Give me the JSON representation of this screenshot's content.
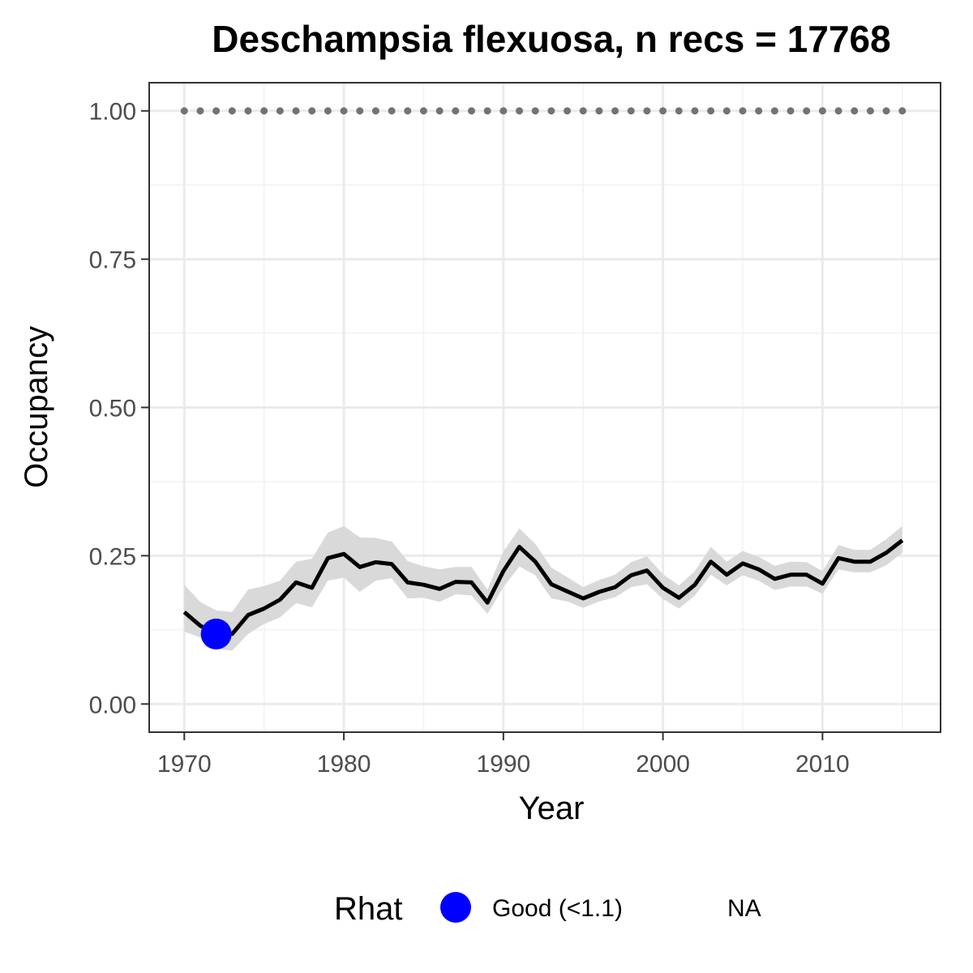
{
  "chart_data": {
    "type": "line",
    "title": "Deschampsia flexuosa, n recs = 17768",
    "xlabel": "Year",
    "ylabel": "Occupancy",
    "xlim": [
      1967.8,
      2017.4
    ],
    "ylim": [
      -0.0475,
      1.0475
    ],
    "x_ticks": [
      1970,
      1980,
      1990,
      2000,
      2010
    ],
    "x_tick_labels": [
      "1970",
      "1980",
      "1990",
      "2000",
      "2010"
    ],
    "y_ticks": [
      0,
      0.25,
      0.5,
      0.75,
      1
    ],
    "y_tick_labels": [
      "0.00",
      "0.25",
      "0.50",
      "0.75",
      "1.00"
    ],
    "grid": true,
    "legend": {
      "position": "bottom",
      "title": "Rhat",
      "entries": [
        {
          "label": "Good (<1.1)",
          "color": "#0000ff",
          "marker": "circle"
        },
        {
          "label": "NA",
          "color": "",
          "marker": "none"
        }
      ]
    },
    "colors": {
      "line": "#000000",
      "ribbon": "#d9d9d9",
      "reference": "#737373",
      "rhat_good": "#0000ff"
    },
    "series": [
      {
        "x": [
          1970,
          1971,
          1972,
          1973,
          1974,
          1975,
          1976,
          1977,
          1978,
          1979,
          1980,
          1981,
          1982,
          1983,
          1984,
          1985,
          1986,
          1987,
          1988,
          1989,
          1990,
          1991,
          1992,
          1993,
          1994,
          1995,
          1996,
          1997,
          1998,
          1999,
          2000,
          2001,
          2002,
          2003,
          2004,
          2005,
          2006,
          2007,
          2008,
          2009,
          2010,
          2011,
          2012,
          2013,
          2014,
          2015
        ],
        "values": [
          0.155,
          0.132,
          0.118,
          0.118,
          0.15,
          0.161,
          0.176,
          0.205,
          0.196,
          0.246,
          0.253,
          0.231,
          0.239,
          0.236,
          0.205,
          0.201,
          0.194,
          0.206,
          0.205,
          0.171,
          0.224,
          0.265,
          0.24,
          0.202,
          0.19,
          0.178,
          0.189,
          0.197,
          0.217,
          0.225,
          0.196,
          0.179,
          0.201,
          0.24,
          0.218,
          0.237,
          0.227,
          0.211,
          0.218,
          0.218,
          0.203,
          0.246,
          0.24,
          0.24,
          0.255,
          0.276
        ],
        "lower": [
          0.122,
          0.112,
          0.093,
          0.09,
          0.118,
          0.135,
          0.146,
          0.17,
          0.163,
          0.208,
          0.213,
          0.189,
          0.208,
          0.212,
          0.178,
          0.179,
          0.172,
          0.185,
          0.183,
          0.152,
          0.197,
          0.232,
          0.217,
          0.178,
          0.173,
          0.162,
          0.173,
          0.18,
          0.197,
          0.202,
          0.177,
          0.161,
          0.183,
          0.218,
          0.2,
          0.217,
          0.208,
          0.192,
          0.198,
          0.198,
          0.186,
          0.227,
          0.222,
          0.222,
          0.234,
          0.255
        ],
        "upper": [
          0.201,
          0.172,
          0.158,
          0.155,
          0.193,
          0.199,
          0.208,
          0.24,
          0.245,
          0.289,
          0.3,
          0.281,
          0.28,
          0.274,
          0.241,
          0.232,
          0.227,
          0.231,
          0.231,
          0.193,
          0.257,
          0.296,
          0.27,
          0.23,
          0.214,
          0.197,
          0.209,
          0.218,
          0.239,
          0.249,
          0.219,
          0.2,
          0.224,
          0.265,
          0.24,
          0.258,
          0.248,
          0.233,
          0.24,
          0.239,
          0.224,
          0.268,
          0.26,
          0.26,
          0.278,
          0.3
        ]
      }
    ],
    "reference_line": {
      "style": "dotted",
      "x": [
        1970,
        1971,
        1972,
        1973,
        1974,
        1975,
        1976,
        1977,
        1978,
        1979,
        1980,
        1981,
        1982,
        1983,
        1984,
        1985,
        1986,
        1987,
        1988,
        1989,
        1990,
        1991,
        1992,
        1993,
        1994,
        1995,
        1996,
        1997,
        1998,
        1999,
        2000,
        2001,
        2002,
        2003,
        2004,
        2005,
        2006,
        2007,
        2008,
        2009,
        2010,
        2011,
        2012,
        2013,
        2014,
        2015
      ],
      "value": 1.0
    },
    "rhat_points": [
      {
        "x": 1972,
        "y": 0.118,
        "category": "Good (<1.1)"
      }
    ]
  }
}
